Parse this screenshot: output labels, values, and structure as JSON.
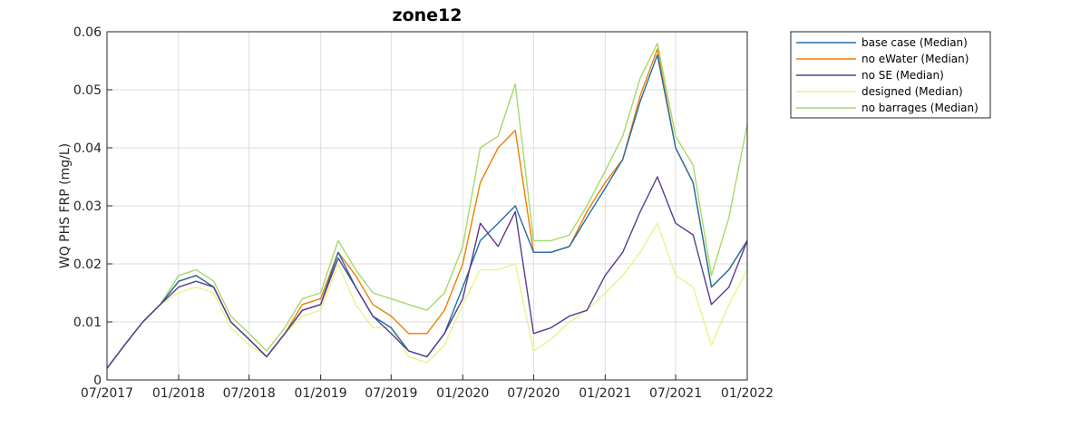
{
  "chart_data": {
    "type": "line",
    "title": "zone12",
    "xlabel": "",
    "ylabel": "WQ PHS FRP (mg/L)",
    "xlim": [
      "2017-07-01",
      "2022-01-01"
    ],
    "ylim": [
      0,
      0.06
    ],
    "grid": true,
    "legend_position": "outside-top-right",
    "x_ticks": [
      "07/2017",
      "01/2018",
      "07/2018",
      "01/2019",
      "07/2019",
      "01/2020",
      "07/2020",
      "01/2021",
      "07/2021",
      "01/2022"
    ],
    "y_ticks": [
      "0",
      "0.01",
      "0.02",
      "0.03",
      "0.04",
      "0.05",
      "0.06"
    ],
    "x": [
      "2017-07-01",
      "2017-08-15",
      "2017-10-01",
      "2017-11-15",
      "2018-01-01",
      "2018-02-15",
      "2018-04-01",
      "2018-05-15",
      "2018-07-01",
      "2018-08-15",
      "2018-10-01",
      "2018-11-15",
      "2019-01-01",
      "2019-02-15",
      "2019-04-01",
      "2019-05-15",
      "2019-07-01",
      "2019-08-15",
      "2019-10-01",
      "2019-11-15",
      "2020-01-01",
      "2020-02-15",
      "2020-04-01",
      "2020-05-15",
      "2020-07-01",
      "2020-08-15",
      "2020-10-01",
      "2020-11-15",
      "2021-01-01",
      "2021-02-15",
      "2021-04-01",
      "2021-05-15",
      "2021-07-01",
      "2021-08-15",
      "2021-10-01",
      "2021-11-15",
      "2022-01-01"
    ],
    "series": [
      {
        "name": "base case (Median)",
        "color": "#1f6fa8",
        "values": [
          0.002,
          0.006,
          0.01,
          0.013,
          0.017,
          0.018,
          0.016,
          0.01,
          0.007,
          0.004,
          0.008,
          0.012,
          0.013,
          0.022,
          0.016,
          0.011,
          0.009,
          0.005,
          0.004,
          0.008,
          0.016,
          0.024,
          0.027,
          0.03,
          0.022,
          0.022,
          0.023,
          0.028,
          0.033,
          0.038,
          0.048,
          0.056,
          0.04,
          0.034,
          0.016,
          0.019,
          0.024
        ]
      },
      {
        "name": "no eWater (Median)",
        "color": "#ef7f00",
        "values": [
          0.002,
          0.006,
          0.01,
          0.013,
          0.017,
          0.018,
          0.016,
          0.01,
          0.007,
          0.004,
          0.008,
          0.013,
          0.014,
          0.022,
          0.018,
          0.013,
          0.011,
          0.008,
          0.008,
          0.012,
          0.02,
          0.034,
          0.04,
          0.043,
          0.022,
          0.022,
          0.023,
          0.029,
          0.034,
          0.038,
          0.049,
          0.057,
          0.04,
          0.034,
          0.016,
          0.019,
          0.024
        ]
      },
      {
        "name": "no SE (Median)",
        "color": "#5b3a8e",
        "values": [
          0.002,
          0.006,
          0.01,
          0.013,
          0.016,
          0.017,
          0.016,
          0.01,
          0.007,
          0.004,
          0.008,
          0.012,
          0.013,
          0.021,
          0.016,
          0.011,
          0.008,
          0.005,
          0.004,
          0.008,
          0.014,
          0.027,
          0.023,
          0.029,
          0.008,
          0.009,
          0.011,
          0.012,
          0.018,
          0.022,
          0.029,
          0.035,
          0.027,
          0.025,
          0.013,
          0.016,
          0.024
        ]
      },
      {
        "name": "designed (Median)",
        "color": "#e6f58a",
        "values": [
          0.002,
          0.006,
          0.01,
          0.013,
          0.015,
          0.016,
          0.015,
          0.009,
          0.006,
          0.004,
          0.008,
          0.011,
          0.012,
          0.02,
          0.013,
          0.009,
          0.009,
          0.004,
          0.003,
          0.006,
          0.013,
          0.019,
          0.019,
          0.02,
          0.005,
          0.007,
          0.01,
          0.012,
          0.015,
          0.018,
          0.022,
          0.027,
          0.018,
          0.016,
          0.006,
          0.013,
          0.019
        ]
      },
      {
        "name": "no barrages (Median)",
        "color": "#a6d96a",
        "values": [
          0.002,
          0.006,
          0.01,
          0.013,
          0.018,
          0.019,
          0.017,
          0.011,
          0.008,
          0.005,
          0.009,
          0.014,
          0.015,
          0.024,
          0.019,
          0.015,
          0.014,
          0.013,
          0.012,
          0.015,
          0.023,
          0.04,
          0.042,
          0.051,
          0.024,
          0.024,
          0.025,
          0.03,
          0.036,
          0.042,
          0.052,
          0.058,
          0.042,
          0.037,
          0.018,
          0.028,
          0.044
        ]
      }
    ]
  }
}
